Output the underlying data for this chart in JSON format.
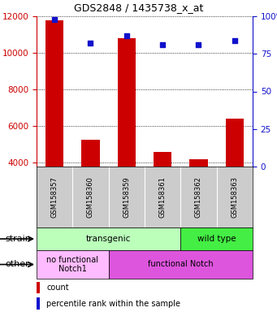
{
  "title": "GDS2848 / 1435738_x_at",
  "samples": [
    "GSM158357",
    "GSM158360",
    "GSM158359",
    "GSM158361",
    "GSM158362",
    "GSM158363"
  ],
  "counts": [
    11800,
    5250,
    10800,
    4600,
    4200,
    6400
  ],
  "percentile_ranks": [
    98,
    82,
    87,
    81,
    81,
    84
  ],
  "ylim_left": [
    3800,
    12000
  ],
  "ylim_right": [
    0,
    100
  ],
  "yticks_left": [
    4000,
    6000,
    8000,
    10000,
    12000
  ],
  "yticks_right": [
    0,
    25,
    50,
    75,
    100
  ],
  "bar_color": "#cc0000",
  "dot_color": "#1111cc",
  "bar_width": 0.5,
  "strain_groups": [
    {
      "label": "transgenic",
      "cols": [
        0,
        1,
        2,
        3
      ],
      "color": "#bbffbb"
    },
    {
      "label": "wild type",
      "cols": [
        4,
        5
      ],
      "color": "#44ee44"
    }
  ],
  "other_groups": [
    {
      "label": "no functional\nNotch1",
      "cols": [
        0,
        1
      ],
      "color": "#ffbbff"
    },
    {
      "label": "functional Notch",
      "cols": [
        2,
        3,
        4,
        5
      ],
      "color": "#dd55dd"
    }
  ],
  "background_color": "#ffffff",
  "left_axis_color": "#cc0000",
  "right_axis_color": "#1111cc",
  "grid_color": "#000000",
  "tick_label_bg": "#cccccc"
}
